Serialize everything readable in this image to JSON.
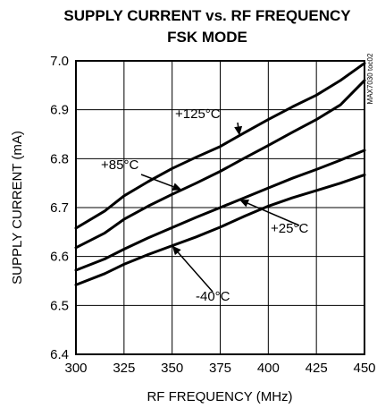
{
  "chart_data": {
    "type": "line",
    "title": "SUPPLY CURRENT vs. RF FREQUENCY",
    "subtitle": "FSK MODE",
    "xlabel": "RF FREQUENCY (MHz)",
    "ylabel": "SUPPLY CURRENT (mA)",
    "xlim": [
      300,
      450
    ],
    "ylim": [
      6.4,
      7.0
    ],
    "xticks": [
      "300",
      "325",
      "350",
      "375",
      "400",
      "425",
      "450"
    ],
    "yticks": [
      "6.4",
      "6.5",
      "6.6",
      "6.7",
      "6.8",
      "6.9",
      "7.0"
    ],
    "grid": true,
    "figure_code": "MAX7030 toc02",
    "x": [
      300,
      315,
      325,
      337.5,
      350,
      362.5,
      375,
      387.5,
      400,
      412.5,
      425,
      437.5,
      450
    ],
    "series": [
      {
        "name": "+125°C",
        "values": [
          6.658,
          6.693,
          6.724,
          6.753,
          6.78,
          6.803,
          6.825,
          6.853,
          6.88,
          6.906,
          6.93,
          6.96,
          6.995
        ]
      },
      {
        "name": "+85°C",
        "values": [
          6.618,
          6.648,
          6.676,
          6.703,
          6.727,
          6.75,
          6.774,
          6.801,
          6.827,
          6.854,
          6.88,
          6.91,
          6.96
        ]
      },
      {
        "name": "+25°C",
        "values": [
          6.572,
          6.595,
          6.615,
          6.638,
          6.659,
          6.68,
          6.7,
          6.72,
          6.74,
          6.76,
          6.778,
          6.797,
          6.817
        ]
      },
      {
        "name": "-40°C",
        "values": [
          6.542,
          6.565,
          6.584,
          6.604,
          6.622,
          6.64,
          6.66,
          6.682,
          6.703,
          6.72,
          6.735,
          6.75,
          6.767
        ]
      }
    ],
    "annotations": [
      {
        "text": "+125°C",
        "series": "+125°C"
      },
      {
        "text": "+85°C",
        "series": "+85°C"
      },
      {
        "text": "+25°C",
        "series": "+25°C"
      },
      {
        "text": "-40°C",
        "series": "-40°C"
      }
    ]
  }
}
